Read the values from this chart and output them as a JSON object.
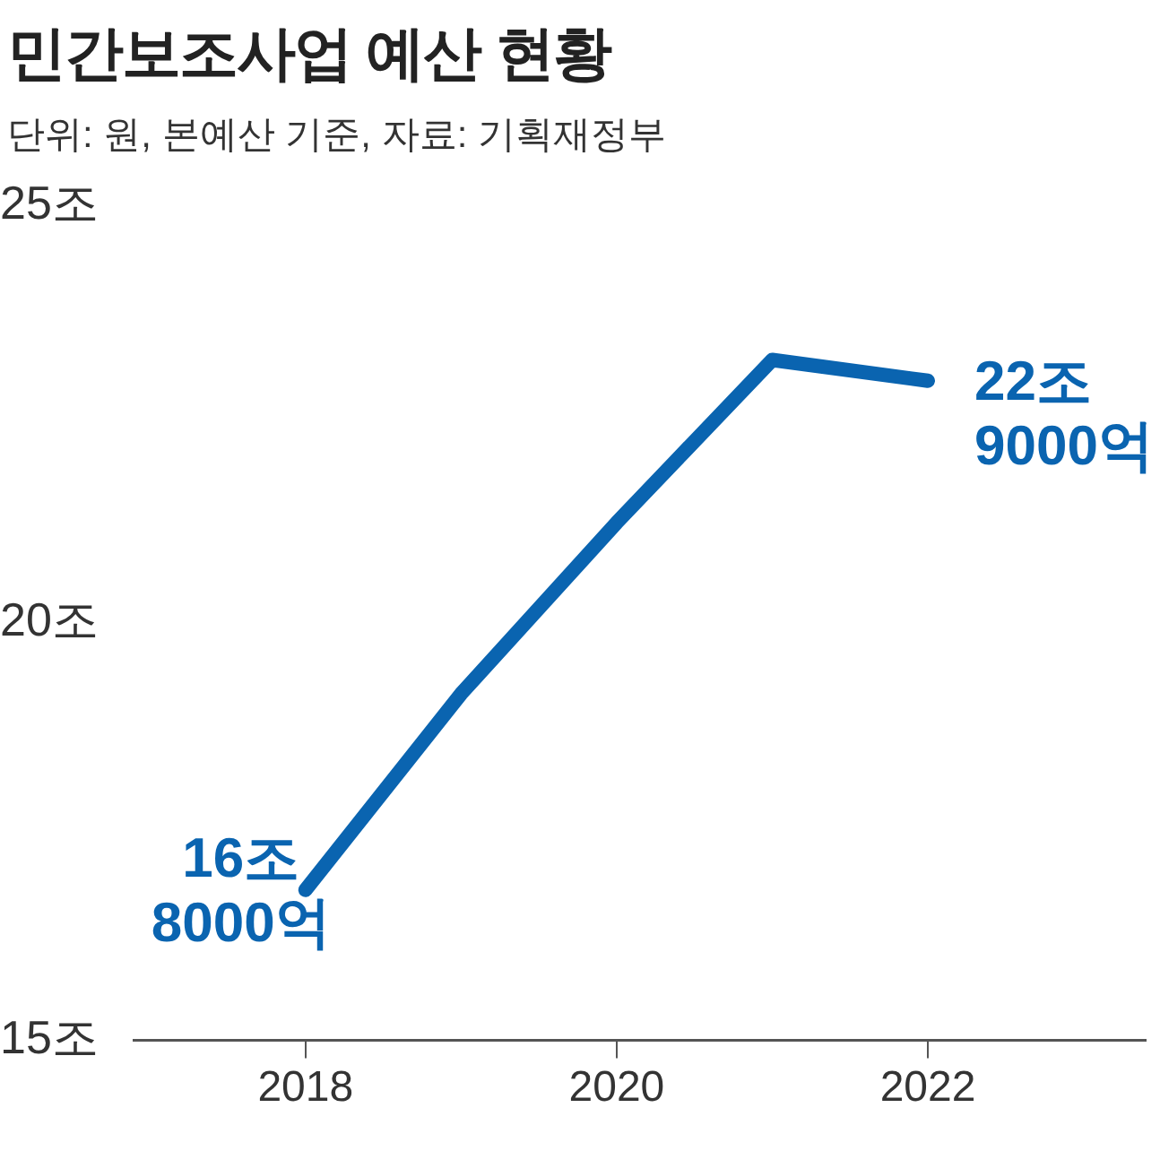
{
  "chart_data": {
    "type": "line",
    "title": "민간보조사업 예산 현황",
    "subtitle": "단위: 원, 본예산 기준, 자료: 기획재정부",
    "x": [
      2018,
      2019,
      2020,
      2021,
      2022
    ],
    "values": [
      16.8,
      19.15,
      21.2,
      23.15,
      22.9
    ],
    "color": "#0a64b0",
    "annotations": [
      {
        "text": "16조 8000억",
        "x": 2018,
        "y": 16.8
      },
      {
        "text": "22조 9000억",
        "x": 2022,
        "y": 22.9
      }
    ],
    "xlim": [
      2016.9,
      2023.4
    ],
    "xticks": [
      2018,
      2020,
      2022
    ],
    "ylim": [
      15,
      25
    ],
    "yticks": [
      {
        "value": 15,
        "label": "15조"
      },
      {
        "value": 20,
        "label": "20조"
      },
      {
        "value": 25,
        "label": "25조"
      }
    ],
    "grid": false,
    "legend": false,
    "marker": "none",
    "line_style": "solid"
  }
}
